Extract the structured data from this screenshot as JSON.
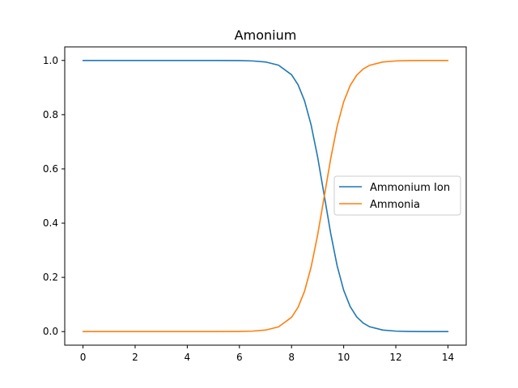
{
  "chart_data": {
    "type": "line",
    "title": "Amonium",
    "xlabel": "",
    "ylabel": "",
    "xlim": [
      -0.7,
      14.7
    ],
    "ylim": [
      -0.05,
      1.05
    ],
    "xticks": [
      0,
      2,
      4,
      6,
      8,
      10,
      12,
      14
    ],
    "yticks": [
      0.0,
      0.2,
      0.4,
      0.6,
      0.8,
      1.0
    ],
    "xtick_labels": [
      "0",
      "2",
      "4",
      "6",
      "8",
      "10",
      "12",
      "14"
    ],
    "ytick_labels": [
      "0.0",
      "0.2",
      "0.4",
      "0.6",
      "0.8",
      "1.0"
    ],
    "grid": false,
    "legend_position": "center-right",
    "series": [
      {
        "name": "Ammonium Ion",
        "color": "#1f77b4",
        "x": [
          0,
          1,
          2,
          3,
          4,
          5,
          6,
          6.5,
          7,
          7.5,
          8,
          8.25,
          8.5,
          8.75,
          9,
          9.25,
          9.5,
          9.75,
          10,
          10.25,
          10.5,
          10.75,
          11,
          11.5,
          12,
          12.5,
          13,
          14
        ],
        "y": [
          1.0,
          1.0,
          1.0,
          1.0,
          1.0,
          1.0,
          0.9994,
          0.9982,
          0.9944,
          0.9826,
          0.9474,
          0.9104,
          0.8507,
          0.7624,
          0.6441,
          0.5046,
          0.3631,
          0.2424,
          0.1526,
          0.0922,
          0.0542,
          0.0313,
          0.0178,
          0.0057,
          0.0018,
          0.0006,
          0.0002,
          0.0
        ]
      },
      {
        "name": "Ammonia",
        "color": "#ff7f0e",
        "x": [
          0,
          1,
          2,
          3,
          4,
          5,
          6,
          6.5,
          7,
          7.5,
          8,
          8.25,
          8.5,
          8.75,
          9,
          9.25,
          9.5,
          9.75,
          10,
          10.25,
          10.5,
          10.75,
          11,
          11.5,
          12,
          12.5,
          13,
          14
        ],
        "y": [
          0.0,
          0.0,
          0.0,
          0.0,
          0.0,
          0.0,
          0.0006,
          0.0018,
          0.0056,
          0.0174,
          0.0526,
          0.0896,
          0.1493,
          0.2376,
          0.3559,
          0.4954,
          0.6369,
          0.7576,
          0.8474,
          0.9078,
          0.9458,
          0.9687,
          0.9822,
          0.9943,
          0.9982,
          0.9994,
          0.9998,
          1.0
        ]
      }
    ]
  }
}
